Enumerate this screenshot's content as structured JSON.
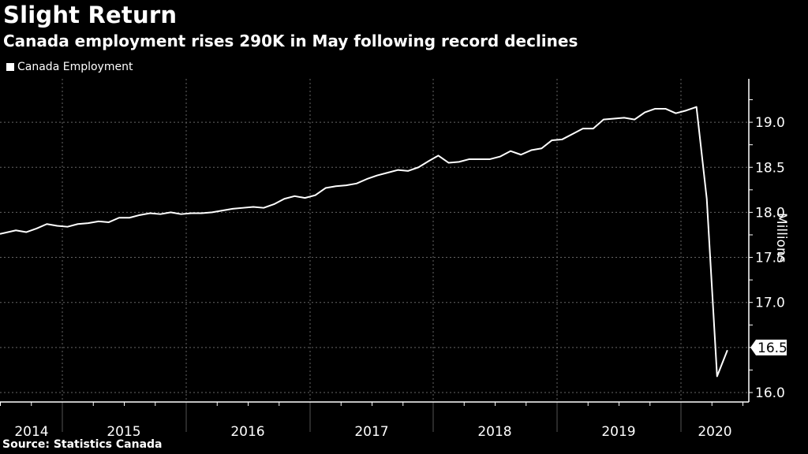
{
  "header": {
    "title": "Slight Return",
    "subtitle": "Canada employment rises 290K in May following record declines"
  },
  "legend": {
    "items": [
      {
        "label": "Canada Employment",
        "color": "#ffffff"
      }
    ]
  },
  "source": "Source: Statistics Canada",
  "axis": {
    "ylabel": "Millions",
    "yticks": [
      "16.0",
      "16.5",
      "17.0",
      "17.5",
      "18.0",
      "18.5",
      "19.0"
    ],
    "xticks": [
      "2014",
      "2015",
      "2016",
      "2017",
      "2018",
      "2019",
      "2020"
    ],
    "last_value_label": "16.5"
  },
  "chart_data": {
    "type": "line",
    "title": "Slight Return",
    "subtitle": "Canada employment rises 290K in May following record declines",
    "xlabel": "",
    "ylabel": "Millions",
    "ylim": [
      15.9,
      19.5
    ],
    "grid": true,
    "legend_position": "top-left",
    "series": [
      {
        "name": "Canada Employment",
        "x": [
          "2014-07",
          "2014-08",
          "2014-09",
          "2014-10",
          "2014-11",
          "2014-12",
          "2015-01",
          "2015-02",
          "2015-03",
          "2015-04",
          "2015-05",
          "2015-06",
          "2015-07",
          "2015-08",
          "2015-09",
          "2015-10",
          "2015-11",
          "2015-12",
          "2016-01",
          "2016-02",
          "2016-03",
          "2016-04",
          "2016-05",
          "2016-06",
          "2016-07",
          "2016-08",
          "2016-09",
          "2016-10",
          "2016-11",
          "2016-12",
          "2017-01",
          "2017-02",
          "2017-03",
          "2017-04",
          "2017-05",
          "2017-06",
          "2017-07",
          "2017-08",
          "2017-09",
          "2017-10",
          "2017-11",
          "2017-12",
          "2018-01",
          "2018-02",
          "2018-03",
          "2018-04",
          "2018-05",
          "2018-06",
          "2018-07",
          "2018-08",
          "2018-09",
          "2018-10",
          "2018-11",
          "2018-12",
          "2019-01",
          "2019-02",
          "2019-03",
          "2019-04",
          "2019-05",
          "2019-06",
          "2019-07",
          "2019-08",
          "2019-09",
          "2019-10",
          "2019-11",
          "2019-12",
          "2020-01",
          "2020-02",
          "2020-03",
          "2020-04",
          "2020-05"
        ],
        "values": [
          17.76,
          17.8,
          17.78,
          17.82,
          17.87,
          17.85,
          17.84,
          17.87,
          17.88,
          17.9,
          17.89,
          17.94,
          17.94,
          17.97,
          17.99,
          17.98,
          18.0,
          17.98,
          17.99,
          17.99,
          18.0,
          18.02,
          18.04,
          18.05,
          18.06,
          18.05,
          18.09,
          18.15,
          18.18,
          18.16,
          18.19,
          18.27,
          18.29,
          18.3,
          18.32,
          18.37,
          18.41,
          18.44,
          18.47,
          18.46,
          18.5,
          18.57,
          18.63,
          18.55,
          18.56,
          18.59,
          18.59,
          18.59,
          18.62,
          18.68,
          18.64,
          18.69,
          18.71,
          18.8,
          18.81,
          18.87,
          18.93,
          18.93,
          19.03,
          19.04,
          19.05,
          19.03,
          19.11,
          19.15,
          19.15,
          19.1,
          19.13,
          19.17,
          18.15,
          16.18,
          16.47
        ]
      }
    ]
  }
}
